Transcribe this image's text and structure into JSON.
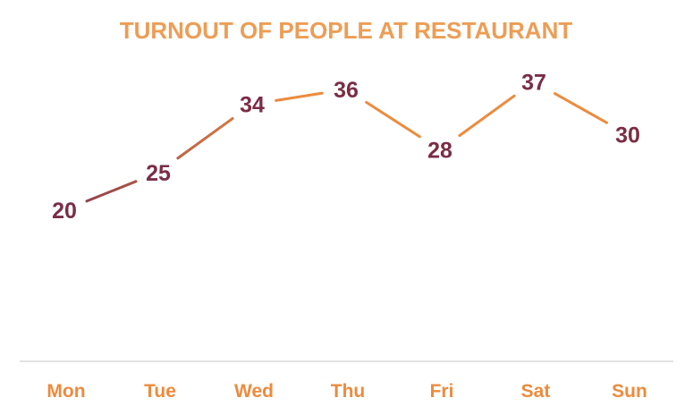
{
  "chart_data": {
    "type": "line",
    "title": "TURNOUT OF PEOPLE AT RESTAURANT",
    "categories": [
      "Mon",
      "Tue",
      "Wed",
      "Thu",
      "Fri",
      "Sat",
      "Sun"
    ],
    "values": [
      20,
      25,
      34,
      36,
      28,
      37,
      30
    ],
    "xlabel": "",
    "ylabel": "",
    "ylim": [
      0,
      40
    ],
    "grid": false,
    "legend": "none",
    "data_labels": true,
    "colors": {
      "title": "#ED9D55",
      "tick_labels": "#ED8B3D",
      "data_labels": "#7B2D45",
      "line_start": "#8B3A4C",
      "line_end": "#ED8B3D",
      "axis": "#D9D9D9"
    }
  }
}
